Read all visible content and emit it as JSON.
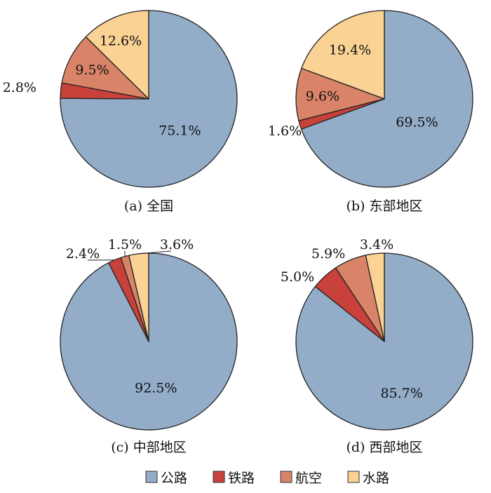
{
  "chart_data": [
    {
      "type": "pie",
      "caption": "(a) 全国",
      "slices": [
        {
          "label": "公路",
          "value": 75.1,
          "value_label": "75.1%"
        },
        {
          "label": "铁路",
          "value": 2.8,
          "value_label": "2.8%"
        },
        {
          "label": "航空",
          "value": 9.5,
          "value_label": "9.5%"
        },
        {
          "label": "水路",
          "value": 12.6,
          "value_label": "12.6%"
        }
      ]
    },
    {
      "type": "pie",
      "caption": "(b) 东部地区",
      "slices": [
        {
          "label": "公路",
          "value": 69.5,
          "value_label": "69.5%"
        },
        {
          "label": "铁路",
          "value": 1.6,
          "value_label": "1.6%"
        },
        {
          "label": "航空",
          "value": 9.6,
          "value_label": "9.6%"
        },
        {
          "label": "水路",
          "value": 19.4,
          "value_label": "19.4%"
        }
      ]
    },
    {
      "type": "pie",
      "caption": "(c) 中部地区",
      "slices": [
        {
          "label": "公路",
          "value": 92.5,
          "value_label": "92.5%"
        },
        {
          "label": "铁路",
          "value": 2.4,
          "value_label": "2.4%"
        },
        {
          "label": "航空",
          "value": 1.5,
          "value_label": "1.5%"
        },
        {
          "label": "水路",
          "value": 3.6,
          "value_label": "3.6%"
        }
      ]
    },
    {
      "type": "pie",
      "caption": "(d) 西部地区",
      "slices": [
        {
          "label": "公路",
          "value": 85.7,
          "value_label": "85.7%"
        },
        {
          "label": "铁路",
          "value": 5.0,
          "value_label": "5.0%"
        },
        {
          "label": "航空",
          "value": 5.9,
          "value_label": "5.9%"
        },
        {
          "label": "水路",
          "value": 3.4,
          "value_label": "3.4%"
        }
      ]
    }
  ],
  "legend": {
    "items": [
      {
        "label": "公路",
        "color": "#93adc9"
      },
      {
        "label": "铁路",
        "color": "#c8413a"
      },
      {
        "label": "航空",
        "color": "#d98468"
      },
      {
        "label": "水路",
        "color": "#f9d294"
      }
    ]
  }
}
